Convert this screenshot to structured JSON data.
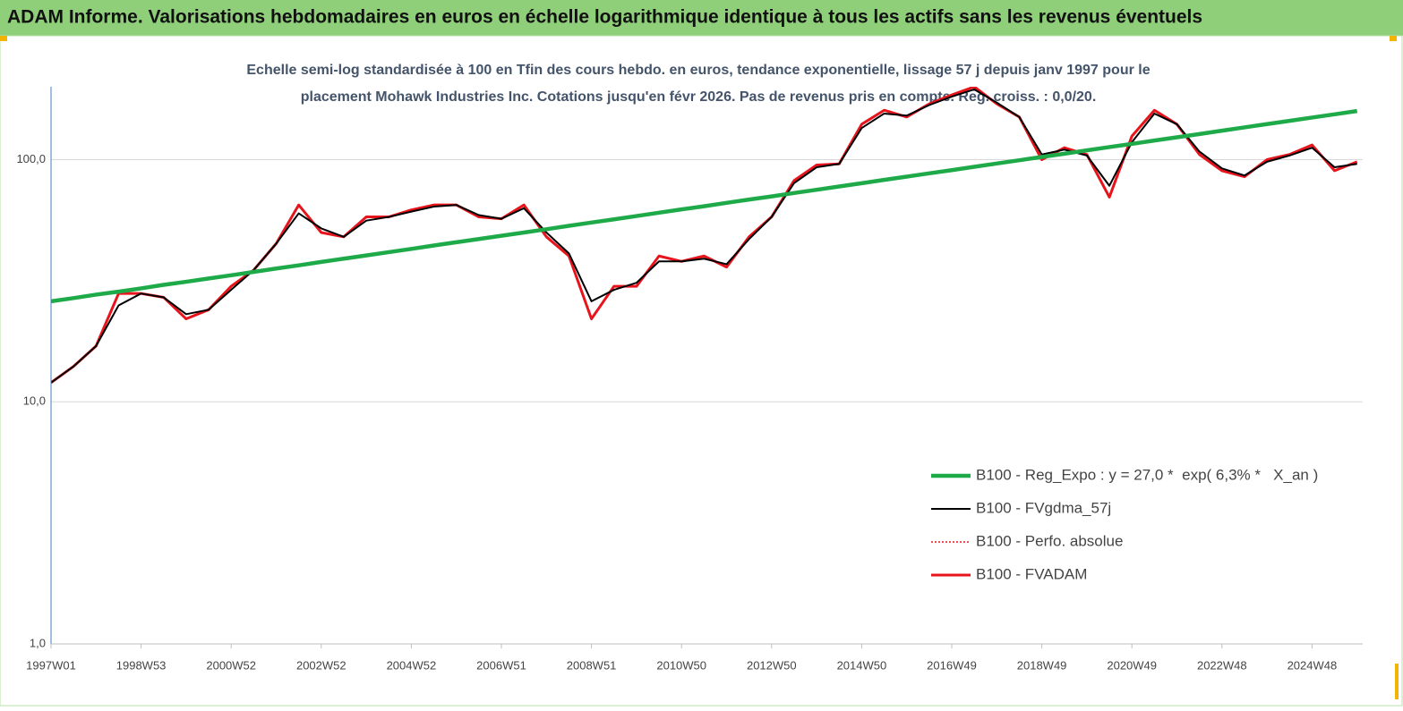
{
  "chart_data": {
    "type": "line",
    "title": "ADAM Informe. Valorisations hebdomadaires en euros en échelle logarithmique identique à tous les actifs sans les revenus éventuels",
    "subtitle": [
      "Echelle semi-log standardisée à 100 en Tfin des cours hebdo. en euros, tendance exponentielle, lissage 57 j depuis janv 1997 pour le",
      "placement Mohawk Industries Inc. Cotations jusqu'en févr 2026. Pas de revenus pris en compte. Reg. croiss. : 0,0/20."
    ],
    "log_scale": true,
    "grid": true,
    "legend": "lower right",
    "ylim": [
      1,
      200
    ],
    "yticks": [
      {
        "value": 1,
        "label": "1,0"
      },
      {
        "value": 10,
        "label": "10,0"
      },
      {
        "value": 100,
        "label": "100,0"
      }
    ],
    "categories": [
      "1997W01",
      null,
      null,
      null,
      "1998W53",
      null,
      null,
      null,
      "2000W52",
      null,
      null,
      null,
      "2002W52",
      null,
      null,
      null,
      "2004W52",
      null,
      null,
      null,
      "2006W51",
      null,
      null,
      null,
      "2008W51",
      null,
      null,
      null,
      "2010W50",
      null,
      null,
      null,
      "2012W50",
      null,
      null,
      null,
      "2014W50",
      null,
      null,
      null,
      "2016W49",
      null,
      null,
      null,
      "2018W49",
      null,
      null,
      null,
      "2020W49",
      null,
      null,
      null,
      "2022W48",
      null,
      null,
      null,
      "2024W48",
      null,
      null
    ],
    "series": [
      {
        "name": "B100 - Reg_Expo : y = 27,0 *  exp( 6,3% *   X_an )",
        "color": "#1faa4a",
        "style": "solid",
        "values": [
          26.0,
          26.8,
          27.7,
          28.5,
          29.4,
          30.4,
          31.3,
          32.3,
          33.3,
          34.4,
          35.5,
          36.6,
          37.8,
          39.0,
          40.2,
          41.5,
          42.8,
          44.2,
          45.6,
          47.0,
          48.5,
          50.0,
          51.6,
          53.3,
          55.0,
          56.7,
          58.5,
          60.4,
          62.3,
          64.2,
          66.3,
          68.4,
          70.5,
          72.8,
          75.1,
          77.5,
          79.9,
          82.5,
          85.1,
          87.8,
          90.5,
          93.4,
          96.4,
          99.4,
          102.6,
          105.8,
          109.2,
          112.7,
          116.2,
          119.9,
          123.7,
          127.6,
          131.7,
          135.9,
          140.2,
          144.6,
          149.2,
          153.9,
          158.8
        ]
      },
      {
        "name": "B100 - FVgdma_57j",
        "color": "#000000",
        "style": "solid",
        "values": [
          12,
          14,
          17,
          25,
          28,
          27,
          23,
          24,
          29,
          35,
          45,
          60,
          52,
          48,
          56,
          58,
          61,
          64,
          65,
          59,
          57,
          63,
          50,
          41,
          26,
          29,
          31,
          38,
          38,
          39,
          37,
          47,
          58,
          80,
          93,
          96,
          135,
          155,
          152,
          168,
          182,
          195,
          172,
          150,
          105,
          110,
          104,
          78,
          118,
          155,
          140,
          108,
          92,
          86,
          98,
          104,
          112,
          93,
          96
        ]
      },
      {
        "name": "B100 - Perfo. absolue",
        "color": "#e8141c",
        "style": "dotted",
        "values": [
          12,
          14,
          17,
          28,
          28,
          27,
          22,
          24,
          30,
          35,
          45,
          65,
          50,
          48,
          58,
          58,
          62,
          65,
          65,
          58,
          57,
          65,
          48,
          40,
          22,
          30,
          30,
          40,
          38,
          40,
          36,
          48,
          58,
          82,
          95,
          96,
          140,
          160,
          150,
          170,
          185,
          200,
          170,
          150,
          100,
          112,
          105,
          70,
          125,
          160,
          140,
          105,
          90,
          85,
          100,
          105,
          115,
          90,
          98
        ]
      },
      {
        "name": "B100 - FVADAM",
        "color": "#e8141c",
        "style": "solid",
        "values": [
          12,
          14,
          17,
          28,
          28,
          27,
          22,
          24,
          30,
          35,
          45,
          65,
          50,
          48,
          58,
          58,
          62,
          65,
          65,
          58,
          57,
          65,
          48,
          40,
          22,
          30,
          30,
          40,
          38,
          40,
          36,
          48,
          58,
          82,
          95,
          96,
          140,
          160,
          150,
          170,
          185,
          200,
          170,
          150,
          100,
          112,
          105,
          70,
          125,
          160,
          140,
          105,
          90,
          85,
          100,
          105,
          115,
          90,
          98
        ]
      }
    ]
  }
}
